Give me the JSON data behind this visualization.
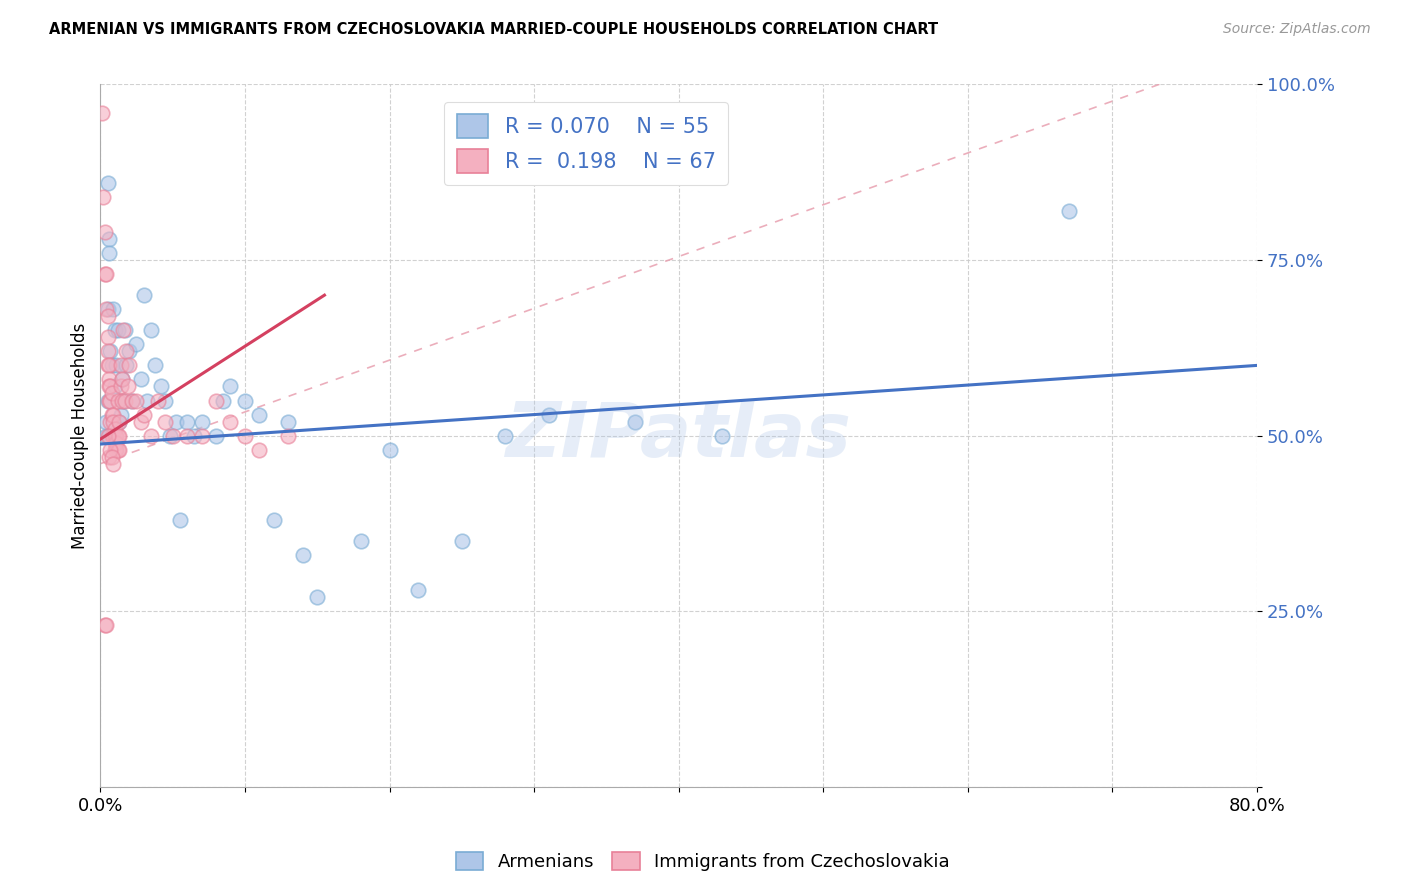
{
  "title": "ARMENIAN VS IMMIGRANTS FROM CZECHOSLOVAKIA MARRIED-COUPLE HOUSEHOLDS CORRELATION CHART",
  "source": "Source: ZipAtlas.com",
  "ylabel": "Married-couple Households",
  "xlim": [
    0.0,
    0.8
  ],
  "ylim": [
    0.0,
    1.0
  ],
  "xticks": [
    0.0,
    0.1,
    0.2,
    0.3,
    0.4,
    0.5,
    0.6,
    0.7,
    0.8
  ],
  "xticklabels": [
    "0.0%",
    "",
    "",
    "",
    "",
    "",
    "",
    "",
    "80.0%"
  ],
  "yticks": [
    0.0,
    0.25,
    0.5,
    0.75,
    1.0
  ],
  "yticklabels": [
    "",
    "25.0%",
    "50.0%",
    "75.0%",
    "100.0%"
  ],
  "R_blue": 0.07,
  "N_blue": 55,
  "R_pink": 0.198,
  "N_pink": 67,
  "blue_color": "#aec6e8",
  "pink_color": "#f4b0c0",
  "blue_edge_color": "#7aacd4",
  "pink_edge_color": "#e88098",
  "blue_line_color": "#4472c4",
  "pink_line_color": "#d44060",
  "ref_line_color": "#e8a0b0",
  "watermark": "ZIPatlas",
  "legend_label_blue": "Armenians",
  "legend_label_pink": "Immigrants from Czechoslovakia",
  "blue_line_x0": 0.0,
  "blue_line_y0": 0.488,
  "blue_line_x1": 0.8,
  "blue_line_y1": 0.6,
  "pink_line_x0": 0.0,
  "pink_line_y0": 0.495,
  "pink_line_x1": 0.155,
  "pink_line_y1": 0.7,
  "blue_scatter_x": [
    0.004,
    0.004,
    0.005,
    0.005,
    0.005,
    0.006,
    0.006,
    0.007,
    0.008,
    0.009,
    0.01,
    0.01,
    0.011,
    0.012,
    0.013,
    0.014,
    0.015,
    0.016,
    0.017,
    0.018,
    0.02,
    0.022,
    0.025,
    0.028,
    0.03,
    0.032,
    0.035,
    0.038,
    0.042,
    0.045,
    0.048,
    0.052,
    0.055,
    0.06,
    0.065,
    0.07,
    0.08,
    0.085,
    0.09,
    0.1,
    0.11,
    0.12,
    0.13,
    0.14,
    0.15,
    0.18,
    0.2,
    0.22,
    0.25,
    0.28,
    0.31,
    0.37,
    0.43,
    0.67,
    0.006
  ],
  "blue_scatter_y": [
    0.5,
    0.52,
    0.86,
    0.68,
    0.55,
    0.78,
    0.76,
    0.62,
    0.6,
    0.68,
    0.65,
    0.57,
    0.6,
    0.65,
    0.52,
    0.53,
    0.58,
    0.55,
    0.65,
    0.6,
    0.62,
    0.55,
    0.63,
    0.58,
    0.7,
    0.55,
    0.65,
    0.6,
    0.57,
    0.55,
    0.5,
    0.52,
    0.38,
    0.52,
    0.5,
    0.52,
    0.5,
    0.55,
    0.57,
    0.55,
    0.53,
    0.38,
    0.52,
    0.33,
    0.27,
    0.35,
    0.48,
    0.28,
    0.35,
    0.5,
    0.53,
    0.52,
    0.5,
    0.82,
    0.5
  ],
  "pink_scatter_x": [
    0.001,
    0.002,
    0.003,
    0.003,
    0.004,
    0.004,
    0.005,
    0.005,
    0.005,
    0.005,
    0.006,
    0.006,
    0.006,
    0.006,
    0.007,
    0.007,
    0.007,
    0.008,
    0.008,
    0.008,
    0.009,
    0.009,
    0.009,
    0.01,
    0.01,
    0.01,
    0.01,
    0.011,
    0.011,
    0.011,
    0.012,
    0.012,
    0.012,
    0.013,
    0.013,
    0.013,
    0.014,
    0.014,
    0.015,
    0.015,
    0.016,
    0.017,
    0.018,
    0.019,
    0.02,
    0.022,
    0.025,
    0.028,
    0.03,
    0.035,
    0.04,
    0.045,
    0.05,
    0.06,
    0.07,
    0.08,
    0.09,
    0.1,
    0.11,
    0.13,
    0.003,
    0.004,
    0.005,
    0.006,
    0.007,
    0.008,
    0.009
  ],
  "pink_scatter_y": [
    0.96,
    0.84,
    0.79,
    0.73,
    0.73,
    0.68,
    0.67,
    0.64,
    0.62,
    0.6,
    0.6,
    0.58,
    0.57,
    0.55,
    0.57,
    0.55,
    0.52,
    0.56,
    0.53,
    0.5,
    0.53,
    0.52,
    0.5,
    0.51,
    0.5,
    0.49,
    0.48,
    0.5,
    0.49,
    0.48,
    0.55,
    0.5,
    0.48,
    0.52,
    0.5,
    0.48,
    0.6,
    0.57,
    0.58,
    0.55,
    0.65,
    0.55,
    0.62,
    0.57,
    0.6,
    0.55,
    0.55,
    0.52,
    0.53,
    0.5,
    0.55,
    0.52,
    0.5,
    0.5,
    0.5,
    0.55,
    0.52,
    0.5,
    0.48,
    0.5,
    0.23,
    0.23,
    0.5,
    0.47,
    0.48,
    0.47,
    0.46
  ]
}
